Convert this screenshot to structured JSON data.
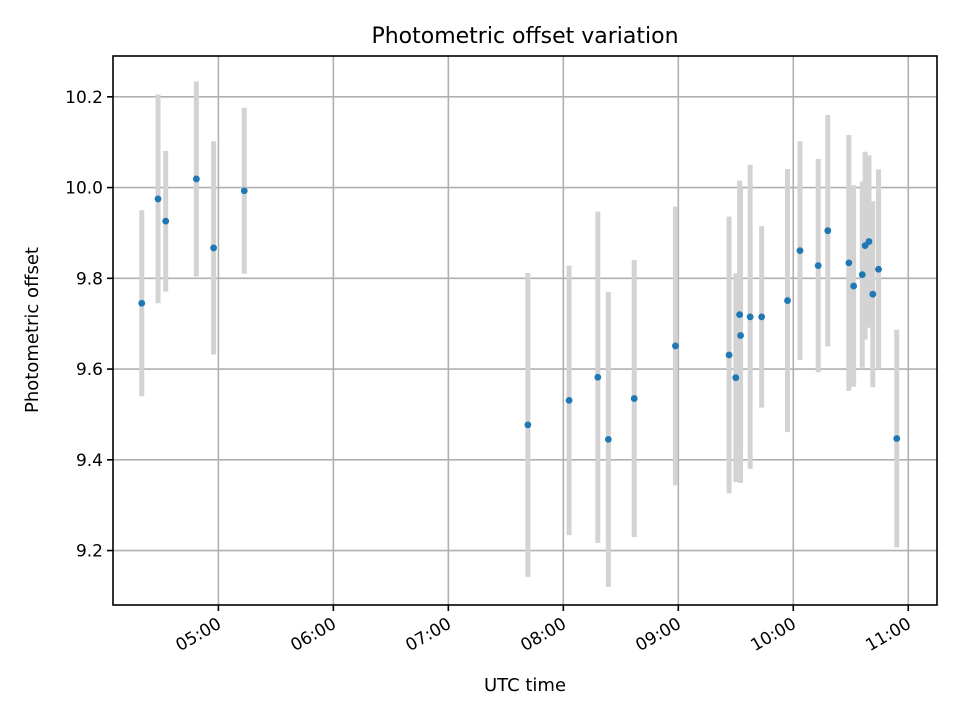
{
  "chart_data": {
    "type": "scatter",
    "title": "Photometric offset variation",
    "xlabel": "UTC time",
    "ylabel": "Photometric offset",
    "x_unit": "UTC time (HH:MM:SS)",
    "xlim": [
      "04:05:00",
      "11:15:00"
    ],
    "ylim": [
      9.08,
      10.29
    ],
    "x_ticks": [
      "05:00",
      "06:00",
      "07:00",
      "08:00",
      "09:00",
      "10:00",
      "11:00"
    ],
    "y_ticks": [
      "9.2",
      "9.4",
      "9.6",
      "9.8",
      "10.0",
      "10.2"
    ],
    "grid": true,
    "colors": {
      "point": "#1f77b4",
      "errorbar": "#d3d3d3"
    },
    "series": [
      {
        "points": [
          {
            "x": "04:20:00",
            "y": 9.745,
            "err": 0.205
          },
          {
            "x": "04:28:30",
            "y": 9.975,
            "err": 0.23
          },
          {
            "x": "04:32:30",
            "y": 9.926,
            "err": 0.155
          },
          {
            "x": "04:48:30",
            "y": 10.019,
            "err": 0.215
          },
          {
            "x": "04:57:30",
            "y": 9.867,
            "err": 0.235
          },
          {
            "x": "05:13:30",
            "y": 9.993,
            "err": 0.183
          },
          {
            "x": "07:41:30",
            "y": 9.477,
            "err": 0.335
          },
          {
            "x": "08:03:00",
            "y": 9.531,
            "err": 0.297
          },
          {
            "x": "08:18:00",
            "y": 9.582,
            "err": 0.365
          },
          {
            "x": "08:23:30",
            "y": 9.445,
            "err": 0.325
          },
          {
            "x": "08:37:00",
            "y": 9.535,
            "err": 0.305
          },
          {
            "x": "08:58:30",
            "y": 9.651,
            "err": 0.307
          },
          {
            "x": "09:26:30",
            "y": 9.631,
            "err": 0.305
          },
          {
            "x": "09:30:00",
            "y": 9.581,
            "err": 0.23
          },
          {
            "x": "09:32:00",
            "y": 9.72,
            "err": 0.295
          },
          {
            "x": "09:32:30",
            "y": 9.674,
            "err": 0.325
          },
          {
            "x": "09:37:30",
            "y": 9.715,
            "err": 0.335
          },
          {
            "x": "09:43:30",
            "y": 9.715,
            "err": 0.2
          },
          {
            "x": "09:57:00",
            "y": 9.751,
            "err": 0.29
          },
          {
            "x": "10:03:30",
            "y": 9.861,
            "err": 0.241
          },
          {
            "x": "10:13:00",
            "y": 9.828,
            "err": 0.235
          },
          {
            "x": "10:18:00",
            "y": 9.905,
            "err": 0.255
          },
          {
            "x": "10:29:00",
            "y": 9.834,
            "err": 0.282
          },
          {
            "x": "10:31:30",
            "y": 9.783,
            "err": 0.222
          },
          {
            "x": "10:36:00",
            "y": 9.808,
            "err": 0.205
          },
          {
            "x": "10:37:30",
            "y": 9.872,
            "err": 0.207
          },
          {
            "x": "10:39:30",
            "y": 9.881,
            "err": 0.19
          },
          {
            "x": "10:41:30",
            "y": 9.765,
            "err": 0.205
          },
          {
            "x": "10:44:30",
            "y": 9.82,
            "err": 0.22
          },
          {
            "x": "10:54:00",
            "y": 9.447,
            "err": 0.24
          }
        ]
      }
    ]
  }
}
